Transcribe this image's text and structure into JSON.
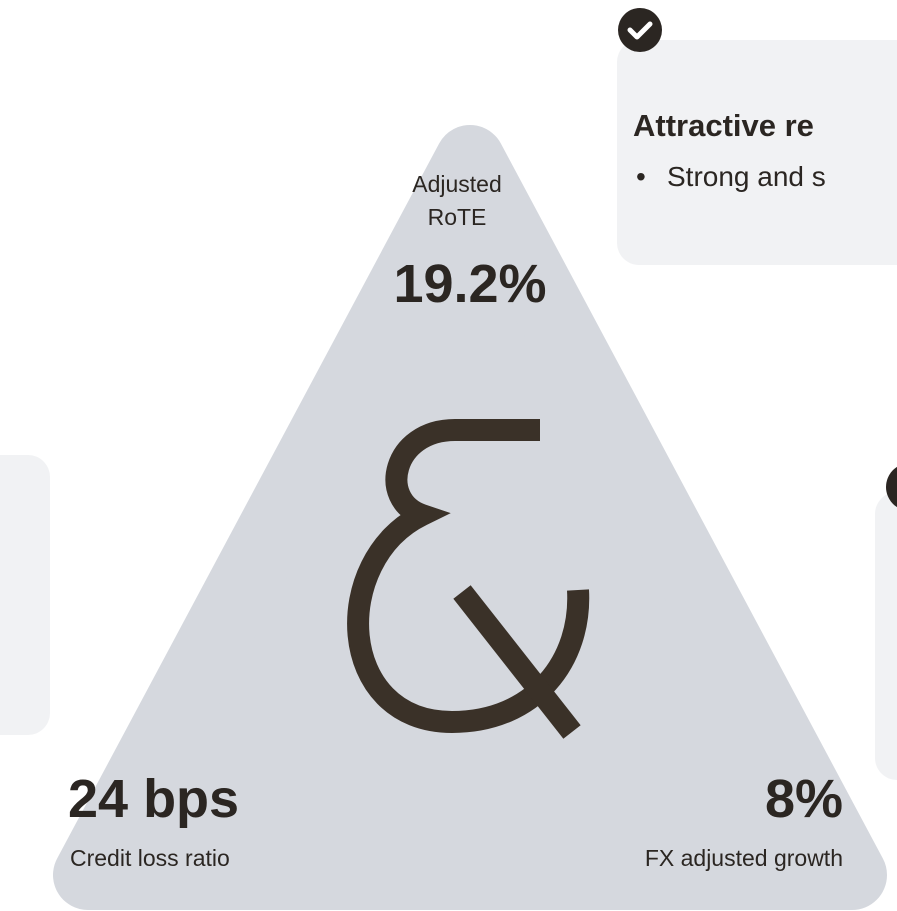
{
  "card_top": {
    "title": "Attractive re",
    "bullet": "•",
    "text": "Strong and s"
  },
  "metrics": {
    "top": {
      "label_line1": "Adjusted",
      "label_line2": "RoTE",
      "value": "19.2%"
    },
    "left": {
      "value": "24 bps",
      "label": "Credit loss ratio"
    },
    "right": {
      "value": "8%",
      "label": "FX adjusted growth"
    }
  }
}
